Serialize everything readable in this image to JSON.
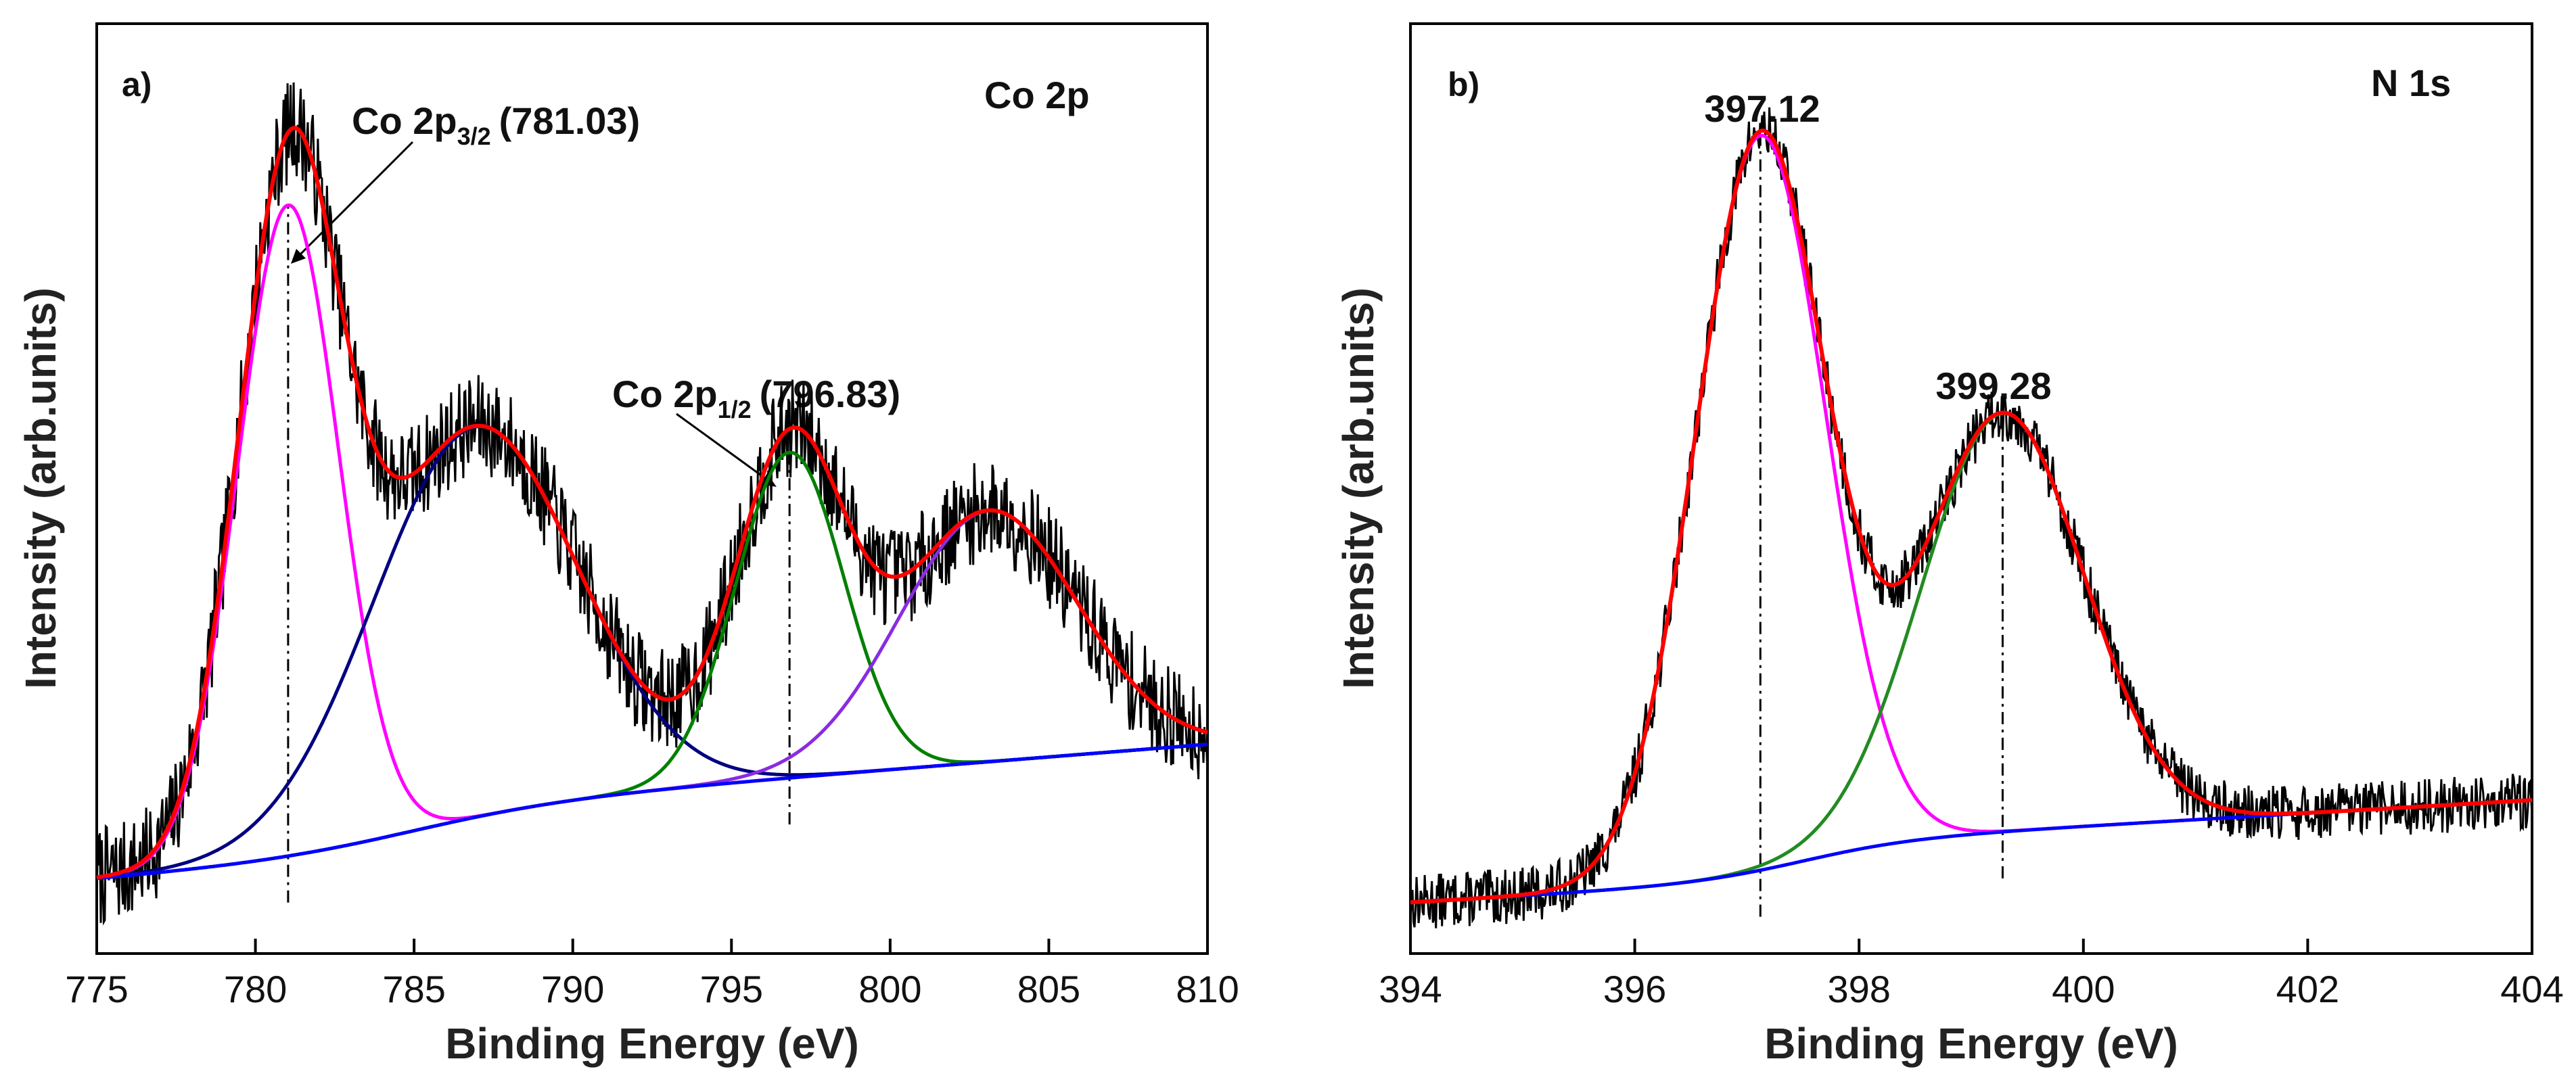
{
  "chart_data": [
    {
      "panel_label": "a)",
      "type": "line",
      "title": "Co 2p",
      "xlabel": "Binding Energy (eV)",
      "ylabel": "Intensity (arb.units)",
      "xlim": [
        775,
        810
      ],
      "ylim": [
        0,
        100
      ],
      "x_ticks": [
        "775",
        "780",
        "785",
        "790",
        "795",
        "800",
        "805",
        "810"
      ],
      "peak_positions": [
        781.03,
        796.83
      ],
      "annotations": [
        {
          "main": "Co 2p",
          "sub": "3/2",
          "value": "(781.03)",
          "x": 781.03
        },
        {
          "main": "Co 2p",
          "sub": "1/2",
          "value": "(796.83)",
          "x": 796.83
        }
      ],
      "series": [
        {
          "name": "Raw data",
          "color": "#000000",
          "noise": 5.5,
          "seed": 7
        },
        {
          "name": "Fitted envelope",
          "color": "#ff0000"
        },
        {
          "name": "Co 2p3/2 component",
          "color": "#ff00ff"
        },
        {
          "name": "Satellite peak 1",
          "color": "#000080"
        },
        {
          "name": "Co 2p1/2 component",
          "color": "#008000"
        },
        {
          "name": "Satellite peak 2",
          "color": "#8a2be2"
        },
        {
          "name": "Background",
          "color": "#0000ff"
        }
      ],
      "background": {
        "x0": 775,
        "y0": 8,
        "x1": 810,
        "y1": 17.5,
        "step_center": 785,
        "step_width": 2.5,
        "step_height": 5
      },
      "components": [
        {
          "series": "Co 2p3/2 component",
          "center": 781.03,
          "height": 70,
          "sigma": 1.6
        },
        {
          "series": "Satellite peak 1",
          "center": 786.9,
          "height": 42,
          "sigma": 3.2
        },
        {
          "series": "Co 2p1/2 component",
          "center": 796.83,
          "height": 35,
          "sigma": 1.7
        },
        {
          "series": "Satellite peak 2",
          "center": 803.1,
          "height": 27,
          "sigma": 2.8
        }
      ]
    },
    {
      "panel_label": "b)",
      "type": "line",
      "title": "N 1s",
      "xlabel": "Binding Energy (eV)",
      "ylabel": "Intensity (arb.units)",
      "xlim": [
        394,
        404
      ],
      "ylim": [
        0,
        100
      ],
      "x_ticks": [
        "394",
        "396",
        "398",
        "400",
        "402",
        "404"
      ],
      "peak_positions": [
        397.12,
        399.28
      ],
      "annotations": [
        {
          "main": "397.12",
          "x": 397.12
        },
        {
          "main": "399.28",
          "x": 399.28
        }
      ],
      "series": [
        {
          "name": "Raw data",
          "color": "#000000",
          "noise": 3,
          "seed": 13
        },
        {
          "name": "Fitted envelope",
          "color": "#ff0000"
        },
        {
          "name": "N 1s component 1",
          "color": "#ff00ff"
        },
        {
          "name": "N 1s component 2",
          "color": "#228b22"
        },
        {
          "name": "Background",
          "color": "#0000ff"
        }
      ],
      "background": {
        "x0": 394,
        "y0": 5.5,
        "x1": 404,
        "y1": 12.5,
        "step_center": 397.5,
        "step_width": 0.5,
        "step_height": 4
      },
      "components": [
        {
          "series": "N 1s component 1",
          "center": 397.12,
          "height": 79,
          "sigma": 0.58
        },
        {
          "series": "N 1s component 2",
          "center": 399.28,
          "height": 45,
          "sigma": 0.72
        }
      ]
    }
  ]
}
